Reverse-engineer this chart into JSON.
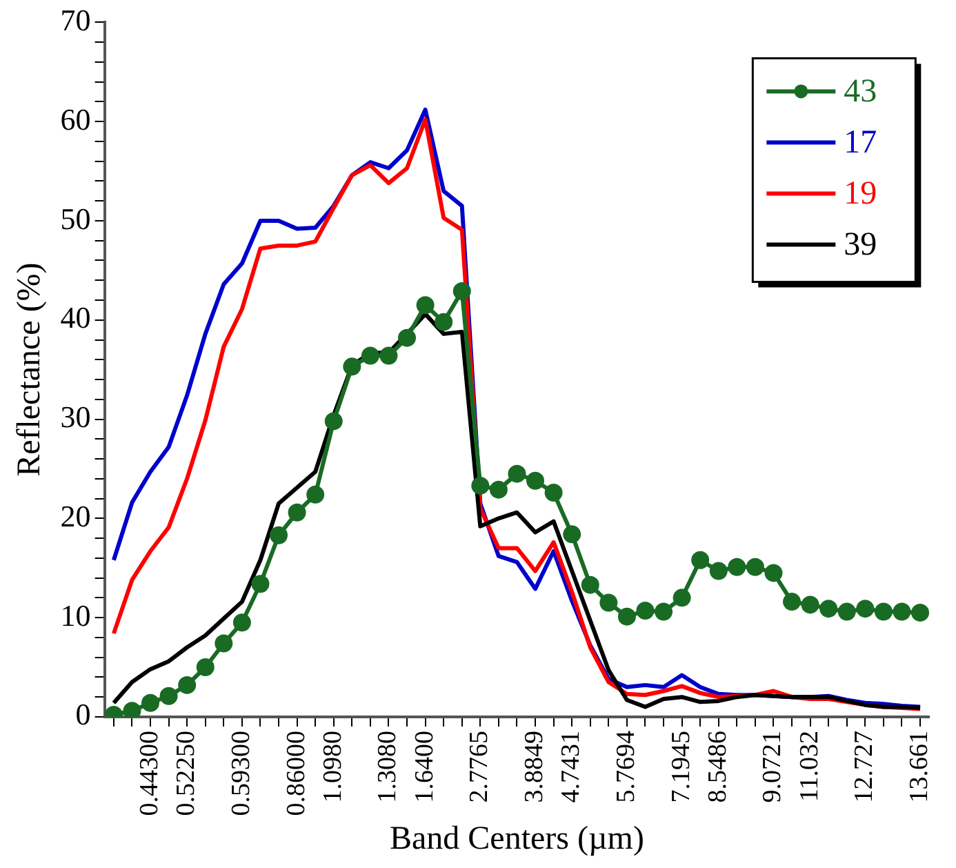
{
  "chart_data": {
    "type": "line",
    "xlabel": "Band Centers (µm)",
    "ylabel": "Reflectance (%)",
    "categories": [
      null,
      null,
      "0.44300",
      null,
      "0.52250",
      null,
      null,
      "0.59300",
      null,
      null,
      "0.86000",
      null,
      "1.0980",
      null,
      null,
      "1.3080",
      null,
      "1.6400",
      null,
      null,
      "2.7765",
      null,
      null,
      "3.8849",
      null,
      "4.7431",
      null,
      null,
      "5.7694",
      null,
      null,
      "7.1945",
      null,
      "8.5486",
      null,
      null,
      "9.0721",
      null,
      "11.032",
      null,
      null,
      "12.727",
      null,
      null,
      "13.661"
    ],
    "ylim": [
      0,
      70
    ],
    "yticks": [
      0,
      {
        "value": 2,
        "label": null
      },
      {
        "value": 4,
        "label": null
      },
      {
        "value": 6,
        "label": null
      },
      {
        "value": 8,
        "label": null
      },
      10,
      {
        "value": 12,
        "label": null
      },
      {
        "value": 14,
        "label": null
      },
      {
        "value": 16,
        "label": null
      },
      {
        "value": 18,
        "label": null
      },
      20,
      {
        "value": 22,
        "label": null
      },
      {
        "value": 24,
        "label": null
      },
      {
        "value": 26,
        "label": null
      },
      {
        "value": 28,
        "label": null
      },
      30,
      {
        "value": 32,
        "label": null
      },
      {
        "value": 34,
        "label": null
      },
      {
        "value": 36,
        "label": null
      },
      {
        "value": 38,
        "label": null
      },
      40,
      {
        "value": 42,
        "label": null
      },
      {
        "value": 44,
        "label": null
      },
      {
        "value": 46,
        "label": null
      },
      {
        "value": 48,
        "label": null
      },
      50,
      {
        "value": 52,
        "label": null
      },
      {
        "value": 54,
        "label": null
      },
      {
        "value": 56,
        "label": null
      },
      {
        "value": 58,
        "label": null
      },
      60,
      {
        "value": 62,
        "label": null
      },
      {
        "value": 64,
        "label": null
      },
      {
        "value": 66,
        "label": null
      },
      {
        "value": 68,
        "label": null
      },
      70
    ],
    "grid": false,
    "legend": "top right",
    "series": [
      {
        "name": "43",
        "color": "#196b24",
        "marker": "circle",
        "values": [
          0.2,
          0.6,
          1.4,
          2.1,
          3.2,
          5.0,
          7.4,
          9.5,
          13.4,
          18.3,
          20.6,
          22.4,
          29.8,
          35.3,
          36.4,
          36.4,
          38.2,
          41.5,
          39.8,
          42.9,
          23.3,
          22.9,
          24.5,
          23.8,
          22.6,
          18.4,
          13.3,
          11.5,
          10.1,
          10.7,
          10.6,
          12.0,
          15.8,
          14.7,
          15.1,
          15.1,
          14.5,
          11.6,
          11.3,
          10.9,
          10.6,
          10.9,
          10.6,
          10.6,
          10.5
        ]
      },
      {
        "name": "17",
        "color": "#0000cc",
        "marker": "none",
        "values": [
          15.8,
          21.6,
          24.7,
          27.2,
          32.4,
          38.6,
          43.6,
          45.7,
          50.0,
          50.0,
          49.2,
          49.3,
          51.5,
          54.6,
          55.9,
          55.3,
          57.1,
          61.2,
          53.0,
          51.5,
          21.5,
          16.2,
          15.6,
          12.9,
          16.7,
          11.7,
          7.2,
          3.8,
          3.0,
          3.2,
          3.0,
          4.2,
          3.0,
          2.3,
          2.2,
          2.2,
          2.1,
          2.0,
          2.0,
          2.1,
          1.7,
          1.4,
          1.3,
          1.1,
          1.0
        ]
      },
      {
        "name": "19",
        "color": "#ff0000",
        "marker": "none",
        "values": [
          8.4,
          13.8,
          16.7,
          19.1,
          24.0,
          29.9,
          37.3,
          41.1,
          47.2,
          47.5,
          47.5,
          47.9,
          51.3,
          54.6,
          55.6,
          53.8,
          55.3,
          60.2,
          50.3,
          49.1,
          21.0,
          17.0,
          17.0,
          14.7,
          17.6,
          12.6,
          7.0,
          3.5,
          2.3,
          2.2,
          2.6,
          3.1,
          2.4,
          2.0,
          2.1,
          2.2,
          2.6,
          2.0,
          1.8,
          1.8,
          1.5,
          1.2,
          1.0,
          0.9,
          0.8
        ]
      },
      {
        "name": "39",
        "color": "#000000",
        "marker": "none",
        "values": [
          1.4,
          3.5,
          4.8,
          5.6,
          7.0,
          8.2,
          9.9,
          11.6,
          15.8,
          21.5,
          23.1,
          24.7,
          30.4,
          35.4,
          36.7,
          36.7,
          38.6,
          40.6,
          38.6,
          38.8,
          19.2,
          20.0,
          20.6,
          18.6,
          19.7,
          14.7,
          9.7,
          4.7,
          1.7,
          1.0,
          1.8,
          2.0,
          1.5,
          1.6,
          2.0,
          2.2,
          2.1,
          2.0,
          2.0,
          2.0,
          1.6,
          1.2,
          1.0,
          1.0,
          0.9
        ]
      }
    ]
  }
}
